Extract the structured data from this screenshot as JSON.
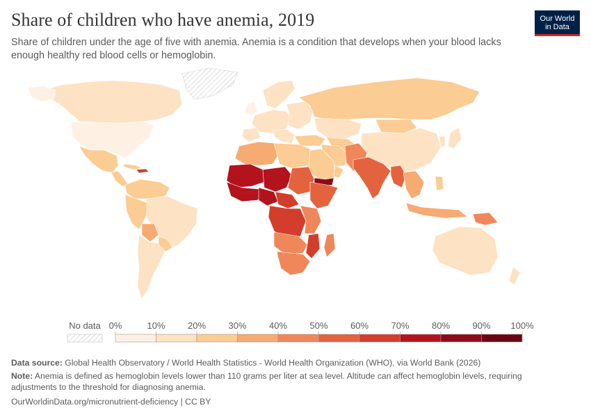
{
  "header": {
    "title": "Share of children who have anemia, 2019",
    "subtitle": "Share of children under the age of five with anemia. Anemia is a condition that develops when your blood lacks enough healthy red blood cells or hemoglobin."
  },
  "logo": {
    "line1": "Our World",
    "line2": "in Data"
  },
  "legend": {
    "no_data_label": "No data",
    "ticks": [
      "0%",
      "10%",
      "20%",
      "30%",
      "40%",
      "50%",
      "60%",
      "70%",
      "80%",
      "90%",
      "100%"
    ],
    "bin_colors": [
      "#fef1e3",
      "#fde2c3",
      "#fbcc93",
      "#f6ab72",
      "#f0875a",
      "#e4633f",
      "#d23e2b",
      "#b3131d",
      "#8d0a17",
      "#6b0111"
    ]
  },
  "footer": {
    "source_label": "Data source:",
    "source_text": "Global Health Observatory / World Health Statistics - World Health Organization (WHO), via World Bank (2026)",
    "note_label": "Note:",
    "note_text": "Anemia is defined as hemoglobin levels lower than 110 grams per liter at sea level. Altitude can affect hemoglobin levels, requiring adjustments to the threshold for diagnosing anemia.",
    "url_text": "OurWorldinData.org/micronutrient-deficiency | CC BY"
  }
}
